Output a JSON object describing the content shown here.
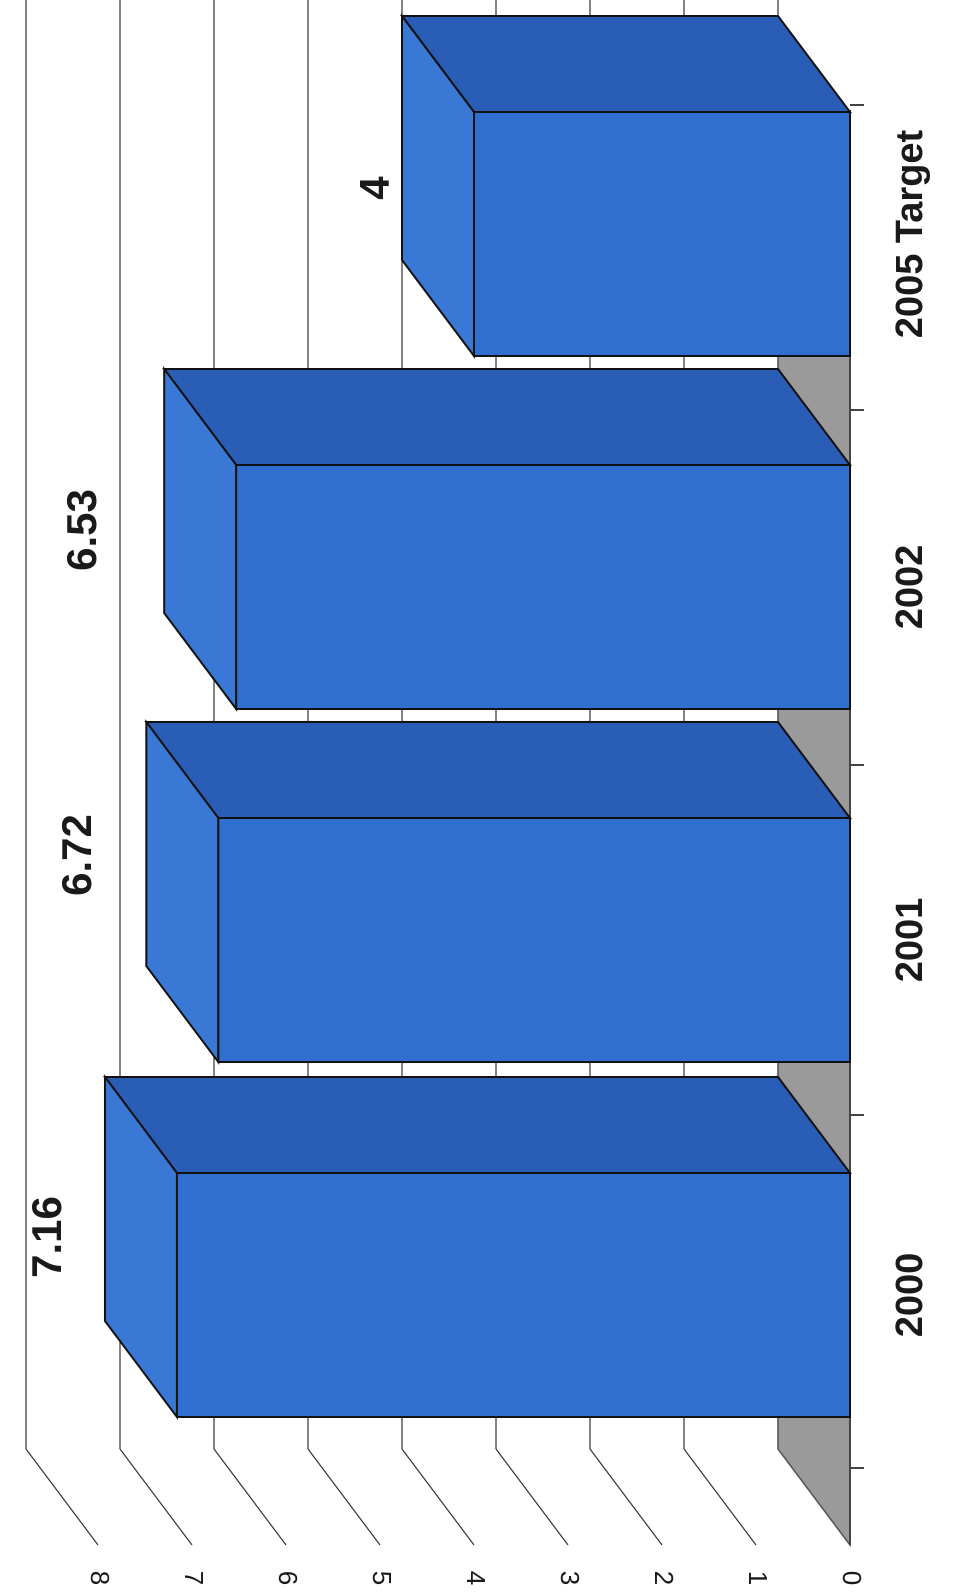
{
  "chart_data": {
    "type": "bar",
    "categories": [
      "2000",
      "2001",
      "2002",
      "2005 Target"
    ],
    "values": [
      7.16,
      6.72,
      6.53,
      4
    ],
    "data_labels": [
      "7.16",
      "6.72",
      "6.53",
      "4"
    ],
    "ylim": [
      0,
      8
    ],
    "yticks": [
      "0",
      "1",
      "2",
      "3",
      "4",
      "5",
      "6",
      "7",
      "8"
    ],
    "title": "",
    "xlabel": "",
    "ylabel": "",
    "grid": true,
    "three_d": true,
    "orientation": "rotated 90 degrees clockwise",
    "colors": {
      "bar_front": "#2f6fd0",
      "bar_top": "#2a5db5",
      "bar_side": "#3a78d6",
      "floor": "#9a9a9a",
      "gridline": "#333333"
    }
  }
}
